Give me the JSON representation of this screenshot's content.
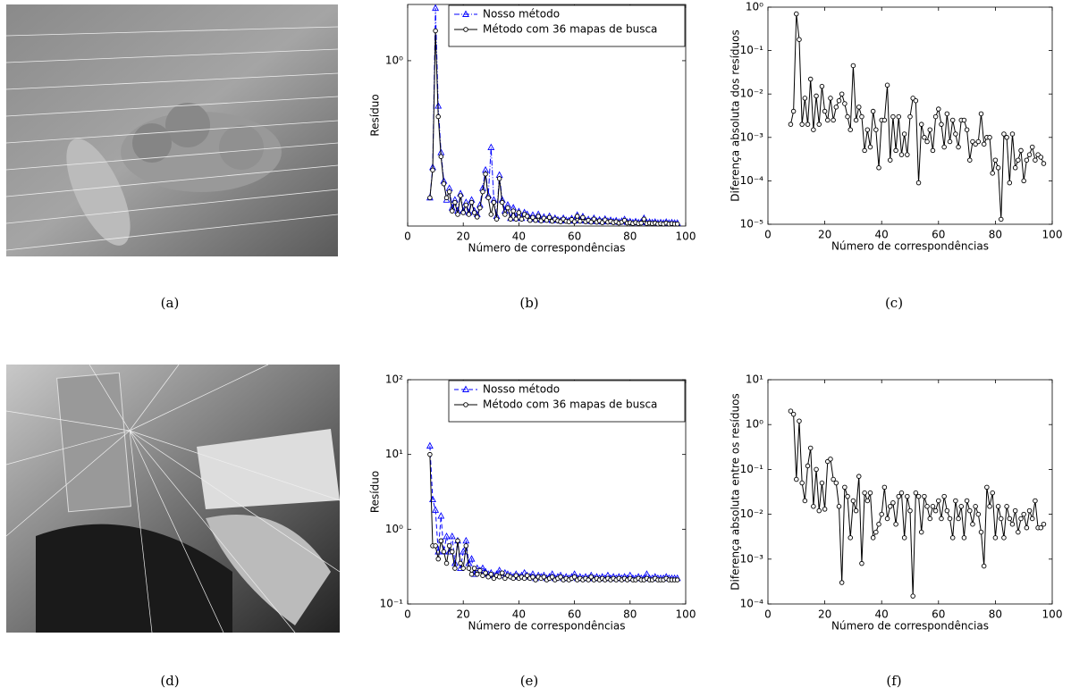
{
  "captions": [
    "(a)",
    "(b)",
    "(c)",
    "(d)",
    "(e)",
    "(f)"
  ],
  "chart_data": [
    {
      "type": "line",
      "xlabel": "Número de correspondências",
      "ylabel": "Resíduo",
      "ylog": true,
      "legend": "upper right",
      "xlim": [
        0,
        100
      ],
      "xticks": [
        0,
        20,
        40,
        60,
        80,
        100
      ],
      "ylim": [
        0.0063,
        5.6
      ],
      "yticks": [
        {
          "value": 1,
          "label": "10⁰"
        }
      ],
      "x": [
        8,
        9,
        10,
        11,
        12,
        13,
        14,
        15,
        16,
        17,
        18,
        19,
        20,
        21,
        22,
        23,
        24,
        25,
        26,
        27,
        28,
        29,
        30,
        31,
        32,
        33,
        34,
        35,
        36,
        37,
        38,
        39,
        40,
        41,
        42,
        43,
        44,
        45,
        46,
        47,
        48,
        49,
        50,
        51,
        52,
        53,
        54,
        55,
        56,
        57,
        58,
        59,
        60,
        61,
        62,
        63,
        64,
        65,
        66,
        67,
        68,
        69,
        70,
        71,
        72,
        73,
        74,
        75,
        76,
        77,
        78,
        79,
        80,
        81,
        82,
        83,
        84,
        85,
        86,
        87,
        88,
        89,
        90,
        91,
        92,
        93,
        94,
        95,
        96,
        97
      ],
      "series": [
        {
          "name": "Nosso método",
          "color": "#0000ff",
          "marker": "triangle",
          "dash": "dashdot",
          "values": [
            0.015,
            0.038,
            5.0,
            0.25,
            0.06,
            0.025,
            0.014,
            0.02,
            0.011,
            0.014,
            0.01,
            0.017,
            0.01,
            0.013,
            0.0095,
            0.014,
            0.01,
            0.009,
            0.012,
            0.02,
            0.035,
            0.016,
            0.07,
            0.014,
            0.0085,
            0.03,
            0.014,
            0.01,
            0.012,
            0.008,
            0.011,
            0.008,
            0.0098,
            0.008,
            0.0095,
            0.009,
            0.008,
            0.0088,
            0.0078,
            0.009,
            0.0076,
            0.0083,
            0.0077,
            0.0085,
            0.0075,
            0.008,
            0.0076,
            0.0074,
            0.008,
            0.0075,
            0.0074,
            0.0079,
            0.0074,
            0.0088,
            0.0075,
            0.0084,
            0.0074,
            0.0077,
            0.0073,
            0.008,
            0.0073,
            0.0076,
            0.0072,
            0.0078,
            0.0073,
            0.0075,
            0.0072,
            0.0074,
            0.0071,
            0.0073,
            0.0077,
            0.0071,
            0.0072,
            0.007,
            0.0072,
            0.007,
            0.0071,
            0.008,
            0.007,
            0.0071,
            0.007,
            0.0071,
            0.0069,
            0.007,
            0.0069,
            0.0071,
            0.0069,
            0.007,
            0.0069,
            0.0069
          ]
        },
        {
          "name": "Método com 36 mapas de busca",
          "color": "#000000",
          "marker": "circle",
          "dash": "solid",
          "values": [
            0.015,
            0.035,
            2.5,
            0.18,
            0.053,
            0.023,
            0.015,
            0.018,
            0.01,
            0.013,
            0.009,
            0.016,
            0.0095,
            0.012,
            0.009,
            0.013,
            0.0095,
            0.0083,
            0.011,
            0.018,
            0.031,
            0.015,
            0.009,
            0.013,
            0.0078,
            0.027,
            0.013,
            0.009,
            0.011,
            0.0078,
            0.01,
            0.0078,
            0.0095,
            0.0078,
            0.009,
            0.0085,
            0.0075,
            0.0082,
            0.0075,
            0.0085,
            0.0074,
            0.008,
            0.0075,
            0.0082,
            0.0073,
            0.0078,
            0.0074,
            0.0072,
            0.0078,
            0.0073,
            0.0072,
            0.0077,
            0.0072,
            0.0085,
            0.0073,
            0.0082,
            0.0072,
            0.0075,
            0.0071,
            0.0078,
            0.0071,
            0.0074,
            0.007,
            0.0076,
            0.0071,
            0.0073,
            0.007,
            0.0072,
            0.0069,
            0.0071,
            0.0075,
            0.0069,
            0.007,
            0.0068,
            0.007,
            0.0068,
            0.0069,
            0.0078,
            0.0068,
            0.0069,
            0.0068,
            0.0069,
            0.0067,
            0.0068,
            0.0067,
            0.0069,
            0.0067,
            0.0068,
            0.0067,
            0.0067
          ]
        }
      ]
    },
    {
      "type": "line",
      "xlabel": "Número de correspondências",
      "ylabel": "Diferença absoluta dos resíduos",
      "ylog": true,
      "xlim": [
        0,
        100
      ],
      "xticks": [
        0,
        20,
        40,
        60,
        80,
        100
      ],
      "ylim": [
        1e-05,
        1
      ],
      "yticks": [
        {
          "value": 1e-05,
          "label": "10⁻⁵"
        },
        {
          "value": 0.0001,
          "label": "10⁻⁴"
        },
        {
          "value": 0.001,
          "label": "10⁻³"
        },
        {
          "value": 0.01,
          "label": "10⁻²"
        },
        {
          "value": 0.1,
          "label": "10⁻¹"
        },
        {
          "value": 1,
          "label": "10⁰"
        }
      ],
      "x": [
        8,
        9,
        10,
        11,
        12,
        13,
        14,
        15,
        16,
        17,
        18,
        19,
        20,
        21,
        22,
        23,
        24,
        25,
        26,
        27,
        28,
        29,
        30,
        31,
        32,
        33,
        34,
        35,
        36,
        37,
        38,
        39,
        40,
        41,
        42,
        43,
        44,
        45,
        46,
        47,
        48,
        49,
        50,
        51,
        52,
        53,
        54,
        55,
        56,
        57,
        58,
        59,
        60,
        61,
        62,
        63,
        64,
        65,
        66,
        67,
        68,
        69,
        70,
        71,
        72,
        73,
        74,
        75,
        76,
        77,
        78,
        79,
        80,
        81,
        82,
        83,
        84,
        85,
        86,
        87,
        88,
        89,
        90,
        91,
        92,
        93,
        94,
        95,
        96,
        97
      ],
      "series": [
        {
          "color": "#000000",
          "marker": "circle",
          "dash": "solid",
          "values": [
            0.002,
            0.004,
            0.7,
            0.18,
            0.002,
            0.008,
            0.002,
            0.022,
            0.0015,
            0.009,
            0.002,
            0.015,
            0.004,
            0.0025,
            0.008,
            0.0025,
            0.005,
            0.007,
            0.01,
            0.006,
            0.003,
            0.0015,
            0.045,
            0.0025,
            0.005,
            0.003,
            0.0005,
            0.0015,
            0.0006,
            0.004,
            0.0015,
            0.0002,
            0.0025,
            0.0025,
            0.016,
            0.0003,
            0.003,
            0.0005,
            0.003,
            0.0004,
            0.0012,
            0.0004,
            0.003,
            0.008,
            0.007,
            9e-05,
            0.002,
            0.001,
            0.0008,
            0.0015,
            0.0005,
            0.003,
            0.0045,
            0.002,
            0.0006,
            0.0035,
            0.0008,
            0.0025,
            0.0012,
            0.0006,
            0.0025,
            0.0025,
            0.0015,
            0.0003,
            0.0008,
            0.0007,
            0.0008,
            0.0035,
            0.0007,
            0.001,
            0.001,
            0.00015,
            0.0003,
            0.0002,
            1.3e-05,
            0.0012,
            0.001,
            9e-05,
            0.0012,
            0.0002,
            0.0003,
            0.0005,
            0.0001,
            0.0003,
            0.0004,
            0.0006,
            0.0003,
            0.0004,
            0.00035,
            0.00025
          ]
        }
      ]
    },
    {
      "type": "line",
      "xlabel": "Número de correspondências",
      "ylabel": "Resíduo",
      "ylog": true,
      "legend": "upper right",
      "xlim": [
        0,
        100
      ],
      "xticks": [
        0,
        20,
        40,
        60,
        80,
        100
      ],
      "ylim": [
        0.1,
        100
      ],
      "yticks": [
        {
          "value": 0.1,
          "label": "10⁻¹"
        },
        {
          "value": 1,
          "label": "10⁰"
        },
        {
          "value": 10,
          "label": "10¹"
        },
        {
          "value": 100,
          "label": "10²"
        }
      ],
      "x": [
        8,
        9,
        10,
        11,
        12,
        13,
        14,
        15,
        16,
        17,
        18,
        19,
        20,
        21,
        22,
        23,
        24,
        25,
        26,
        27,
        28,
        29,
        30,
        31,
        32,
        33,
        34,
        35,
        36,
        37,
        38,
        39,
        40,
        41,
        42,
        43,
        44,
        45,
        46,
        47,
        48,
        49,
        50,
        51,
        52,
        53,
        54,
        55,
        56,
        57,
        58,
        59,
        60,
        61,
        62,
        63,
        64,
        65,
        66,
        67,
        68,
        69,
        70,
        71,
        72,
        73,
        74,
        75,
        76,
        77,
        78,
        79,
        80,
        81,
        82,
        83,
        84,
        85,
        86,
        87,
        88,
        89,
        90,
        91,
        92,
        93,
        94,
        95,
        96,
        97
      ],
      "series": [
        {
          "name": "Nosso método",
          "color": "#0000ff",
          "marker": "triangle",
          "dash": "dash",
          "values": [
            13,
            2.5,
            1.8,
            0.5,
            1.5,
            0.5,
            0.8,
            0.5,
            0.8,
            0.35,
            0.7,
            0.3,
            0.5,
            0.7,
            0.35,
            0.4,
            0.25,
            0.3,
            0.28,
            0.3,
            0.27,
            0.25,
            0.26,
            0.24,
            0.25,
            0.28,
            0.24,
            0.26,
            0.25,
            0.24,
            0.23,
            0.25,
            0.23,
            0.24,
            0.26,
            0.24,
            0.23,
            0.25,
            0.22,
            0.24,
            0.23,
            0.24,
            0.22,
            0.23,
            0.25,
            0.22,
            0.23,
            0.24,
            0.22,
            0.23,
            0.22,
            0.23,
            0.25,
            0.22,
            0.23,
            0.22,
            0.23,
            0.22,
            0.24,
            0.22,
            0.23,
            0.22,
            0.23,
            0.22,
            0.24,
            0.22,
            0.23,
            0.22,
            0.23,
            0.22,
            0.23,
            0.22,
            0.24,
            0.22,
            0.22,
            0.23,
            0.22,
            0.22,
            0.25,
            0.22,
            0.22,
            0.23,
            0.22,
            0.22,
            0.22,
            0.23,
            0.22,
            0.22,
            0.22,
            0.22
          ]
        },
        {
          "name": "Método com 36 mapas de busca",
          "color": "#000000",
          "marker": "circle",
          "dash": "solid",
          "values": [
            10,
            0.6,
            0.6,
            0.4,
            0.7,
            0.5,
            0.35,
            0.6,
            0.5,
            0.3,
            0.7,
            0.35,
            0.3,
            0.6,
            0.3,
            0.25,
            0.3,
            0.25,
            0.28,
            0.24,
            0.26,
            0.23,
            0.25,
            0.22,
            0.24,
            0.23,
            0.26,
            0.22,
            0.24,
            0.23,
            0.22,
            0.24,
            0.22,
            0.23,
            0.22,
            0.24,
            0.22,
            0.23,
            0.21,
            0.23,
            0.22,
            0.23,
            0.21,
            0.22,
            0.23,
            0.21,
            0.22,
            0.23,
            0.21,
            0.22,
            0.21,
            0.22,
            0.23,
            0.21,
            0.22,
            0.21,
            0.22,
            0.21,
            0.23,
            0.21,
            0.22,
            0.21,
            0.22,
            0.21,
            0.22,
            0.21,
            0.22,
            0.21,
            0.22,
            0.21,
            0.22,
            0.21,
            0.22,
            0.21,
            0.21,
            0.22,
            0.21,
            0.21,
            0.22,
            0.21,
            0.21,
            0.22,
            0.21,
            0.21,
            0.21,
            0.22,
            0.21,
            0.21,
            0.21,
            0.21
          ]
        }
      ]
    },
    {
      "type": "line",
      "xlabel": "Número de correspondências",
      "ylabel": "Diferença absoluta entre os resíduos",
      "ylog": true,
      "xlim": [
        0,
        100
      ],
      "xticks": [
        0,
        20,
        40,
        60,
        80,
        100
      ],
      "ylim": [
        0.0001,
        10
      ],
      "yticks": [
        {
          "value": 0.0001,
          "label": "10⁻⁴"
        },
        {
          "value": 0.001,
          "label": "10⁻³"
        },
        {
          "value": 0.01,
          "label": "10⁻²"
        },
        {
          "value": 0.1,
          "label": "10⁻¹"
        },
        {
          "value": 1,
          "label": "10⁰"
        },
        {
          "value": 10,
          "label": "10¹"
        }
      ],
      "x": [
        8,
        9,
        10,
        11,
        12,
        13,
        14,
        15,
        16,
        17,
        18,
        19,
        20,
        21,
        22,
        23,
        24,
        25,
        26,
        27,
        28,
        29,
        30,
        31,
        32,
        33,
        34,
        35,
        36,
        37,
        38,
        39,
        40,
        41,
        42,
        43,
        44,
        45,
        46,
        47,
        48,
        49,
        50,
        51,
        52,
        53,
        54,
        55,
        56,
        57,
        58,
        59,
        60,
        61,
        62,
        63,
        64,
        65,
        66,
        67,
        68,
        69,
        70,
        71,
        72,
        73,
        74,
        75,
        76,
        77,
        78,
        79,
        80,
        81,
        82,
        83,
        84,
        85,
        86,
        87,
        88,
        89,
        90,
        91,
        92,
        93,
        94,
        95,
        96,
        97
      ],
      "series": [
        {
          "color": "#000000",
          "marker": "circle",
          "dash": "solid",
          "values": [
            2,
            1.7,
            0.06,
            1.2,
            0.05,
            0.02,
            0.12,
            0.3,
            0.015,
            0.1,
            0.012,
            0.05,
            0.013,
            0.15,
            0.17,
            0.06,
            0.05,
            0.015,
            0.0003,
            0.04,
            0.025,
            0.003,
            0.02,
            0.012,
            0.07,
            0.0008,
            0.03,
            0.02,
            0.03,
            0.003,
            0.004,
            0.006,
            0.01,
            0.04,
            0.008,
            0.015,
            0.018,
            0.006,
            0.025,
            0.03,
            0.003,
            0.025,
            0.012,
            0.00015,
            0.03,
            0.025,
            0.004,
            0.025,
            0.015,
            0.008,
            0.015,
            0.012,
            0.02,
            0.008,
            0.025,
            0.012,
            0.008,
            0.003,
            0.02,
            0.008,
            0.015,
            0.003,
            0.02,
            0.012,
            0.006,
            0.015,
            0.01,
            0.004,
            0.0007,
            0.04,
            0.015,
            0.03,
            0.003,
            0.015,
            0.008,
            0.003,
            0.015,
            0.008,
            0.006,
            0.012,
            0.004,
            0.008,
            0.01,
            0.005,
            0.012,
            0.008,
            0.02,
            0.005,
            0.005,
            0.006
          ]
        }
      ]
    }
  ]
}
